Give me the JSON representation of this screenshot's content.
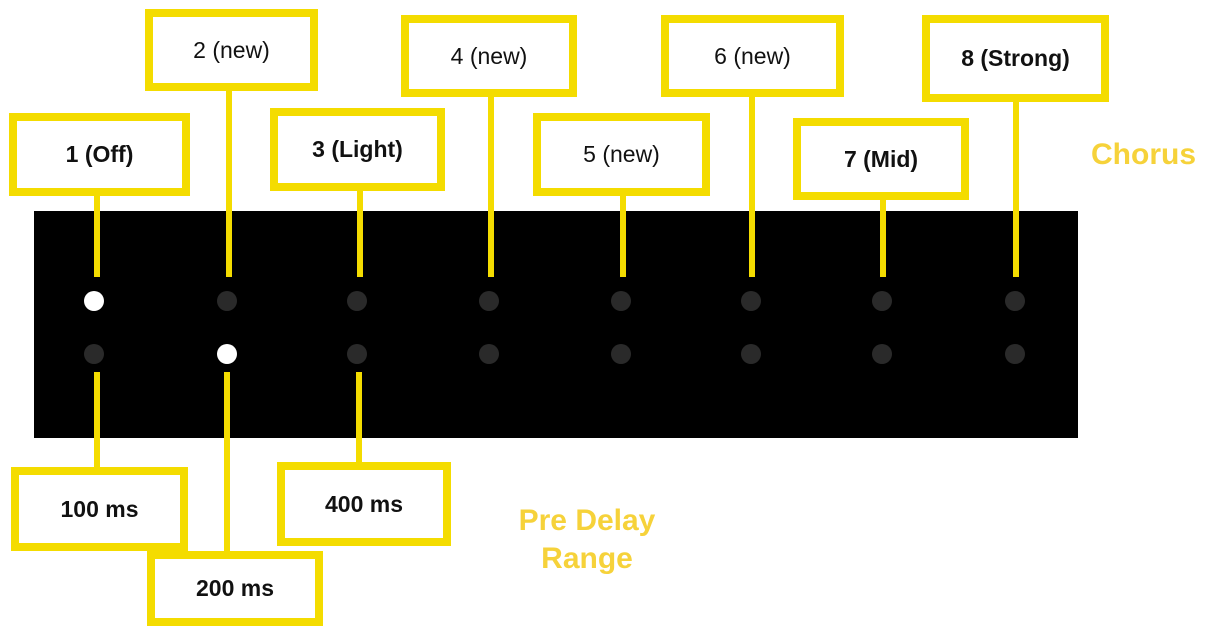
{
  "chorus": {
    "label": "Chorus",
    "steps": [
      {
        "label": "1 (Off)",
        "bold": true,
        "active": true
      },
      {
        "label": "2 (new)",
        "bold": false,
        "active": false
      },
      {
        "label": "3 (Light)",
        "bold": true,
        "active": false
      },
      {
        "label": "4 (new)",
        "bold": false,
        "active": false
      },
      {
        "label": "5 (new)",
        "bold": false,
        "active": false
      },
      {
        "label": "6 (new)",
        "bold": false,
        "active": false
      },
      {
        "label": "7 (Mid)",
        "bold": true,
        "active": false
      },
      {
        "label": "8 (Strong)",
        "bold": true,
        "active": false
      }
    ]
  },
  "pre_delay": {
    "label_line1": "Pre Delay",
    "label_line2": "Range",
    "steps": [
      {
        "label": "100 ms",
        "active": false
      },
      {
        "label": "200 ms",
        "active": true
      },
      {
        "label": "400 ms",
        "active": false
      }
    ]
  },
  "colors": {
    "callout_border": "#f4dc00",
    "label_text": "#f6d23a",
    "panel": "#000000",
    "led_off": "#2a2a2a",
    "led_on": "#ffffff"
  }
}
